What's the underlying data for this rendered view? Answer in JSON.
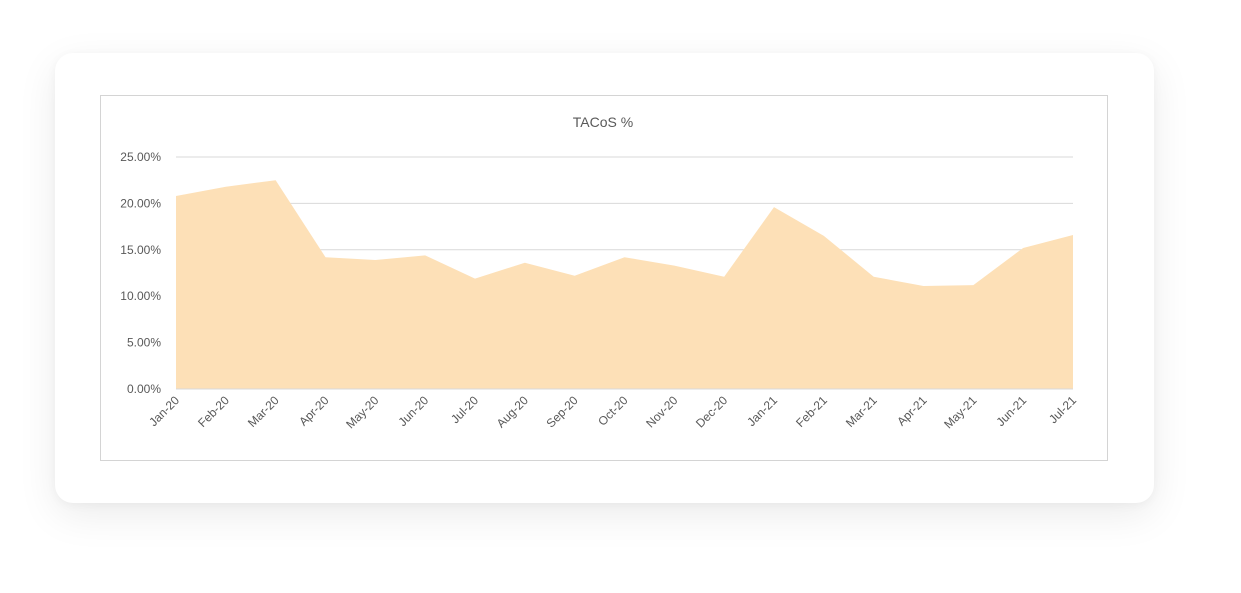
{
  "chart_data": {
    "type": "area",
    "title": "TACoS %",
    "categories": [
      "Jan-20",
      "Feb-20",
      "Mar-20",
      "Apr-20",
      "May-20",
      "Jun-20",
      "Jul-20",
      "Aug-20",
      "Sep-20",
      "Oct-20",
      "Nov-20",
      "Dec-20",
      "Jan-21",
      "Feb-21",
      "Mar-21",
      "Apr-21",
      "May-21",
      "Jun-21",
      "Jul-21"
    ],
    "series": [
      {
        "values": [
          20.8,
          21.8,
          22.5,
          14.2,
          13.9,
          14.4,
          11.9,
          13.6,
          12.2,
          14.2,
          13.3,
          12.1,
          19.6,
          16.5,
          12.1,
          11.1,
          11.2,
          15.2,
          16.6
        ]
      }
    ],
    "y_ticks": [
      "0.00%",
      "5.00%",
      "10.00%",
      "15.00%",
      "20.00%",
      "25.00%"
    ],
    "ylim": [
      0,
      25
    ],
    "grid": true,
    "legend": "none",
    "colors": {
      "area_fill": "#fde0b7",
      "gridline": "#d9d9d9",
      "text": "#595959"
    }
  }
}
